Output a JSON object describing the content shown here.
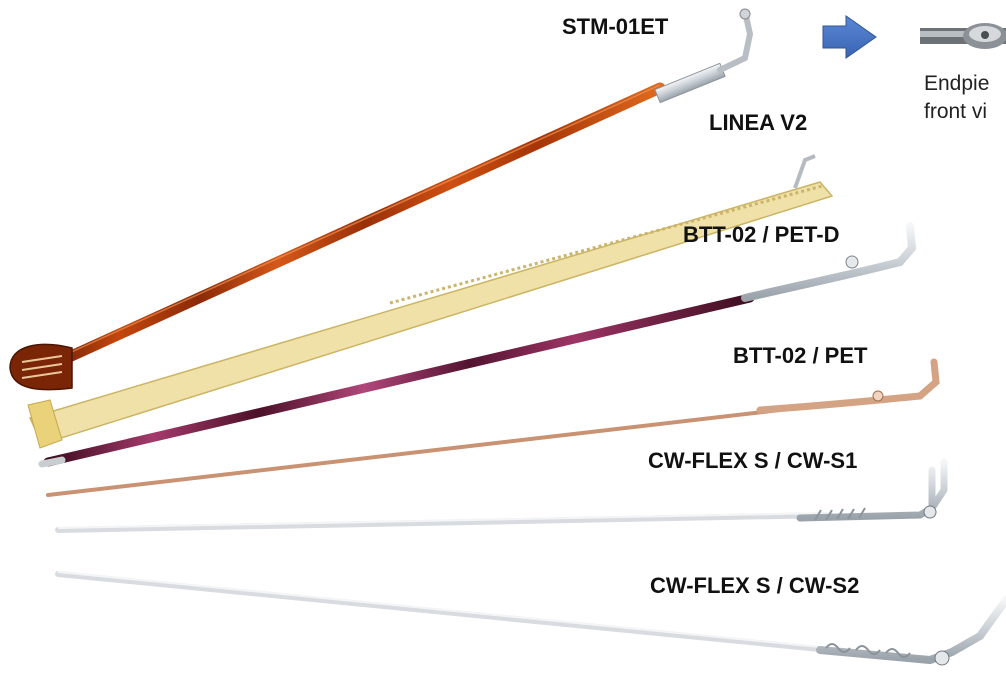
{
  "temples": [
    {
      "id": "stm-01et",
      "label": "STM-01ET"
    },
    {
      "id": "linea-v2",
      "label": "LINEA V2"
    },
    {
      "id": "btt-02-pet-d",
      "label": "BTT-02 / PET-D"
    },
    {
      "id": "btt-02-pet",
      "label": "BTT-02 / PET"
    },
    {
      "id": "cw-flex-s-cw-s1",
      "label": "CW-FLEX S / CW-S1"
    },
    {
      "id": "cw-flex-s-cw-s2",
      "label": "CW-FLEX S / CW-S2"
    }
  ],
  "endpiece_note": {
    "line1": "Endpie",
    "line2": "front vi"
  },
  "colors": {
    "arrow": "#4472C4",
    "tortoise": "#B5420A",
    "gold_clear": "#E9D58A",
    "plum": "#6B1838",
    "rose_gold": "#C99272",
    "steel": "#D8DCE0"
  }
}
